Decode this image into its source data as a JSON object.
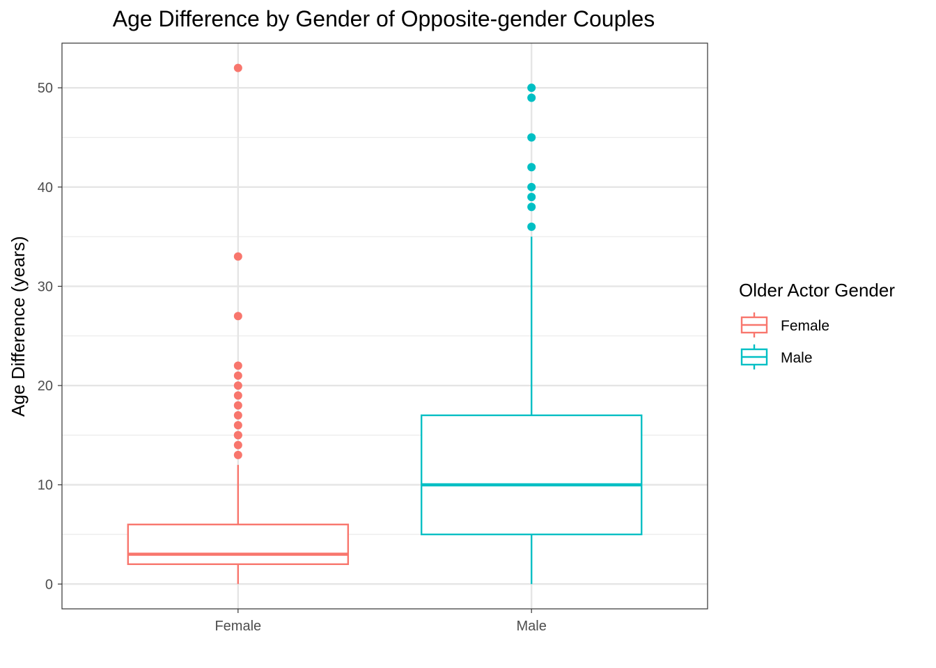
{
  "chart_data": {
    "type": "box",
    "title": "Age Difference by Gender of Opposite-gender Couples",
    "xlabel": "",
    "ylabel": "Age Difference (years)",
    "ylim": [
      -2.5,
      54.5
    ],
    "yticks": [
      0,
      10,
      20,
      30,
      40,
      50
    ],
    "grid": true,
    "legend": {
      "title": "Older Actor Gender",
      "position": "right",
      "entries": [
        "Female",
        "Male"
      ]
    },
    "categories": [
      "Female",
      "Male"
    ],
    "series": [
      {
        "name": "Female",
        "color": "#F8766D",
        "min": 0,
        "q1": 2,
        "median": 3,
        "q3": 6,
        "max": 12,
        "outliers": [
          13,
          14,
          15,
          15,
          16,
          17,
          18,
          19,
          20,
          21,
          22,
          27,
          33,
          52
        ]
      },
      {
        "name": "Male",
        "color": "#00BFC4",
        "min": 0,
        "q1": 5,
        "median": 10,
        "q3": 17,
        "max": 35,
        "outliers": [
          36,
          38,
          39,
          40,
          42,
          45,
          49,
          50
        ]
      }
    ]
  }
}
